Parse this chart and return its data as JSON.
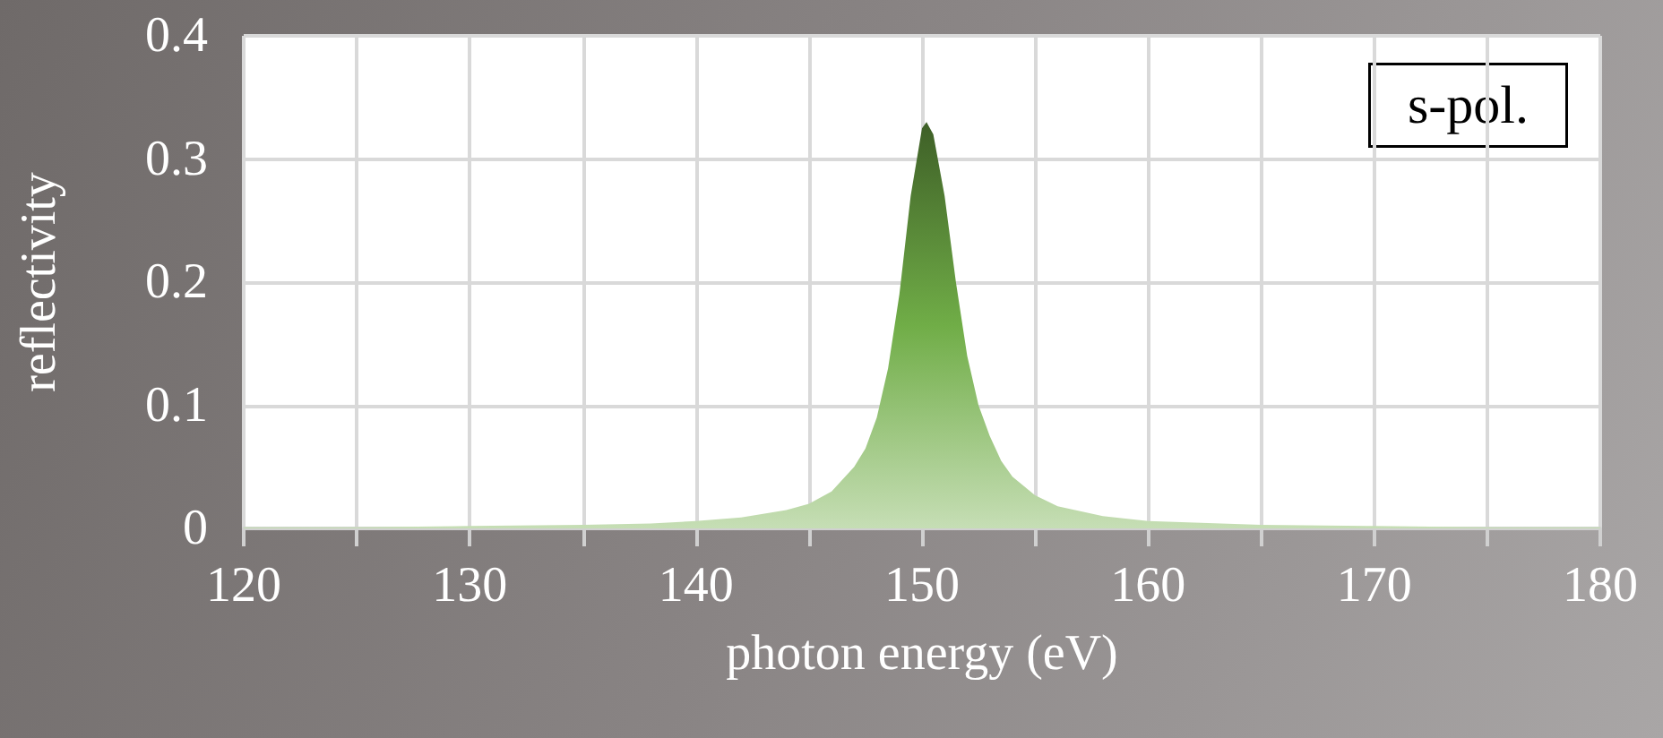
{
  "chart_data": {
    "type": "area",
    "xlabel": "photon energy (eV)",
    "ylabel": "reflectivity",
    "annotations": [
      "s-pol."
    ],
    "x": [
      120,
      125,
      130,
      135,
      138,
      140,
      142,
      144,
      145,
      146,
      147,
      147.5,
      148,
      148.5,
      149,
      149.5,
      150,
      150.2,
      150.5,
      151,
      151.5,
      152,
      152.5,
      153,
      153.5,
      154,
      155,
      156,
      158,
      160,
      165,
      170,
      175,
      180
    ],
    "series": [
      {
        "color": "#70ad47",
        "values": [
          0.001,
          0.001,
          0.002,
          0.003,
          0.004,
          0.006,
          0.009,
          0.015,
          0.02,
          0.03,
          0.05,
          0.065,
          0.09,
          0.13,
          0.19,
          0.27,
          0.325,
          0.33,
          0.32,
          0.27,
          0.2,
          0.14,
          0.1,
          0.075,
          0.055,
          0.042,
          0.027,
          0.018,
          0.01,
          0.006,
          0.003,
          0.002,
          0.001,
          0.001
        ]
      }
    ],
    "xlim": [
      120,
      180
    ],
    "xticks": [
      120,
      {
        "value": 125,
        "label": null
      },
      130,
      {
        "value": 135,
        "label": null
      },
      140,
      {
        "value": 145,
        "label": null
      },
      150,
      {
        "value": 155,
        "label": null
      },
      160,
      {
        "value": 165,
        "label": null
      },
      170,
      {
        "value": 175,
        "label": null
      },
      180
    ],
    "ylim": [
      0,
      0.4
    ],
    "yticks": [
      0,
      0.1,
      0.2,
      0.3,
      0.4
    ],
    "grid": true,
    "marker": "none"
  }
}
